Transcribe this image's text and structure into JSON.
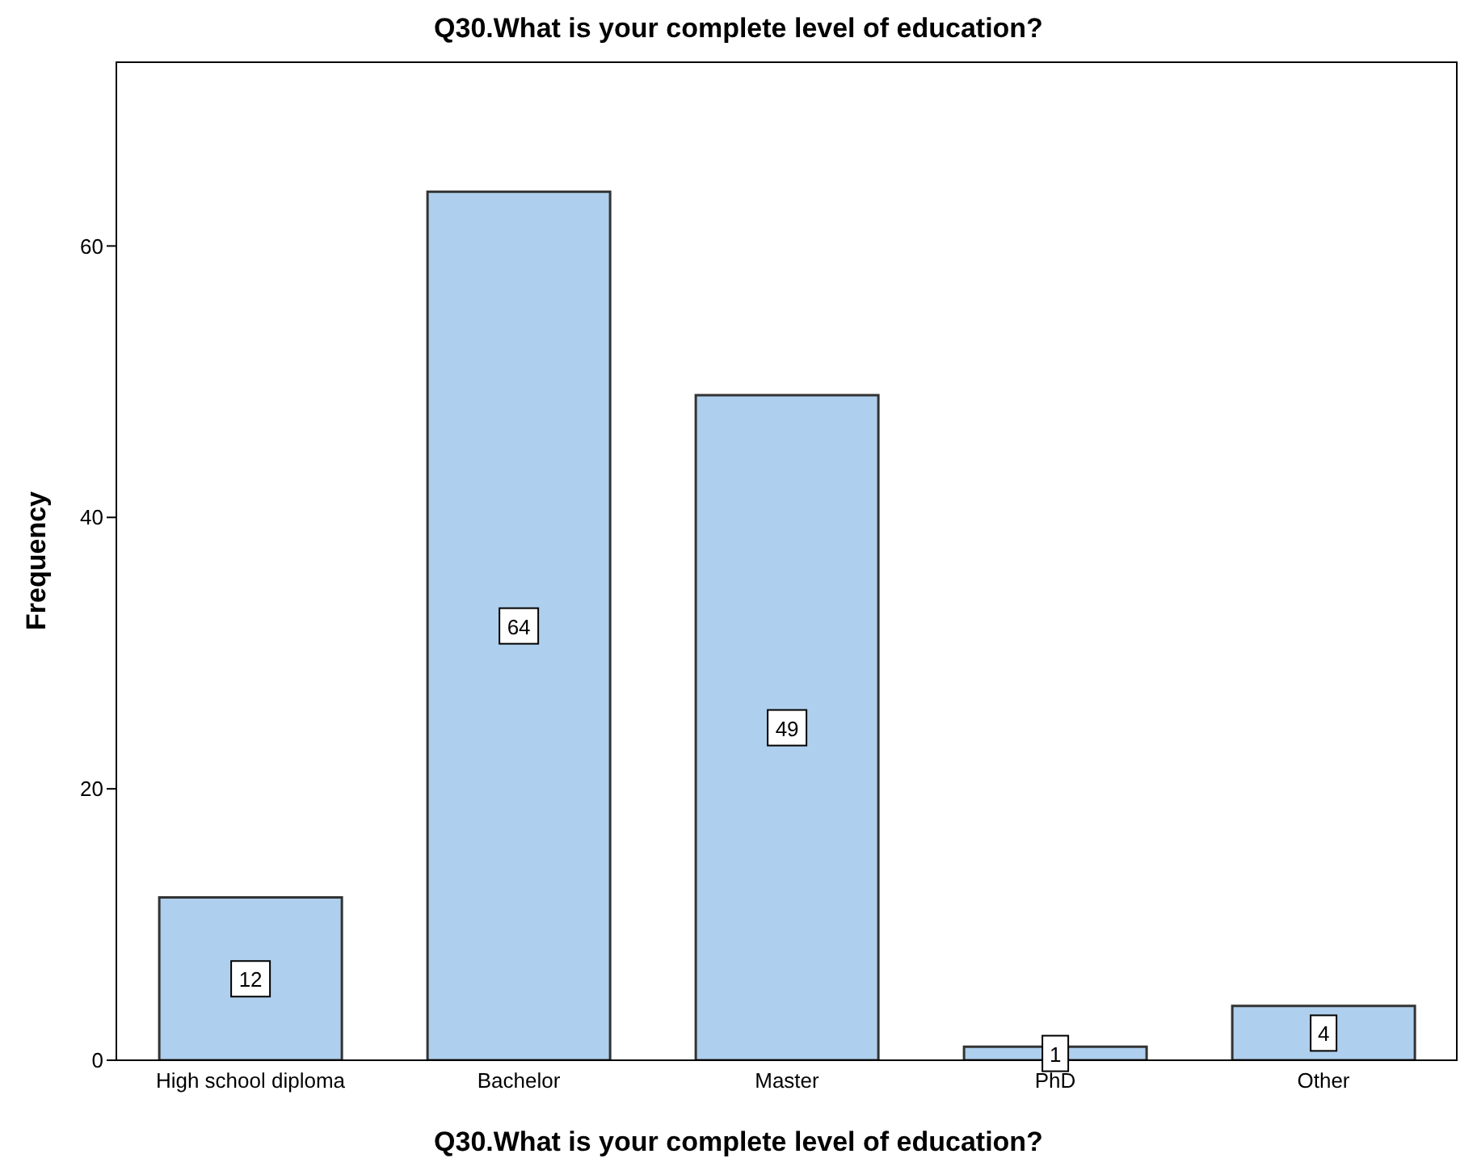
{
  "chart_data": {
    "type": "bar",
    "title": "Q30.What is your complete level of education?",
    "xlabel": "Q30.What is your complete level of education?",
    "ylabel": "Frequency",
    "categories": [
      "High school diploma",
      "Bachelor",
      "Master",
      "PhD",
      "Other"
    ],
    "values": [
      12,
      64,
      49,
      1,
      4
    ],
    "color": "#aecfed",
    "ylim": [
      0,
      73.6
    ],
    "yticks": [
      0,
      20,
      40,
      60
    ],
    "data_labels": true
  }
}
